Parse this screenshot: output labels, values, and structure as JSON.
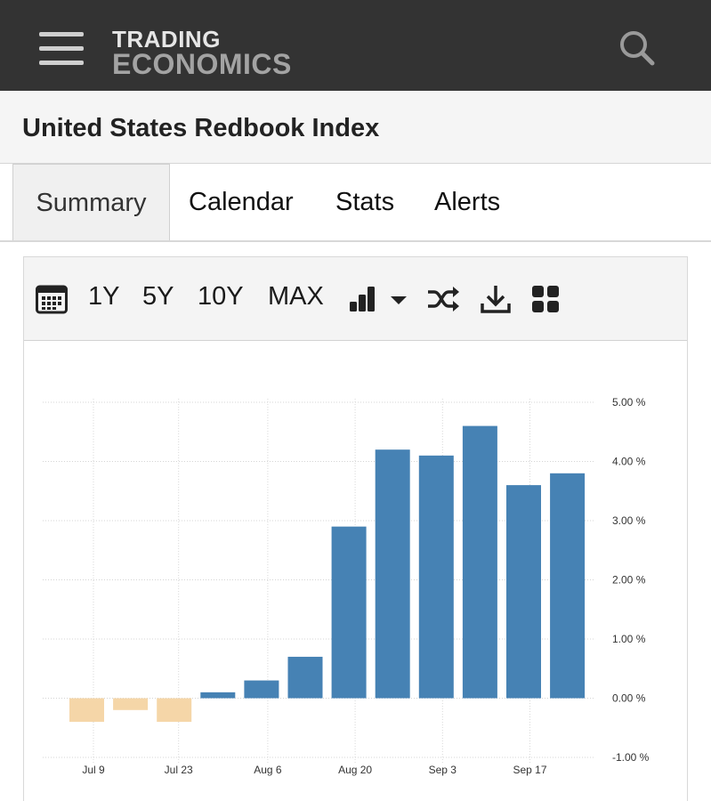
{
  "header": {
    "logo_line1": "TRADING",
    "logo_line2": "ECONOMICS",
    "menu_icon": "hamburger-menu-icon",
    "search_icon": "search-icon"
  },
  "page": {
    "title": "United States Redbook Index"
  },
  "tabs": [
    {
      "label": "Summary",
      "active": true
    },
    {
      "label": "Calendar",
      "active": false
    },
    {
      "label": "Stats",
      "active": false
    },
    {
      "label": "Alerts",
      "active": false
    }
  ],
  "toolbar": {
    "calendar_icon": "calendar-icon",
    "ranges": [
      "1Y",
      "5Y",
      "10Y",
      "MAX"
    ],
    "chart_type_icon": "bar-chart-icon",
    "dropdown_icon": "caret-down-icon",
    "compare_icon": "shuffle-icon",
    "download_icon": "download-icon",
    "embed_icon": "grid-icon"
  },
  "colors": {
    "positive": "#4682b4",
    "negative": "#f5d6a8",
    "header_bg": "#333333"
  },
  "chart_data": {
    "type": "bar",
    "title": "",
    "xlabel": "",
    "ylabel": "",
    "ylim": [
      -1,
      5
    ],
    "y_ticks": [
      "5.00 %",
      "4.00 %",
      "3.00 %",
      "2.00 %",
      "1.00 %",
      "0.00 %",
      "-1.00 %"
    ],
    "y_tick_values": [
      5,
      4,
      3,
      2,
      1,
      0,
      -1
    ],
    "x_tick_labels": [
      "Jul 9",
      "Jul 23",
      "Aug 6",
      "Aug 20",
      "Sep 3",
      "Sep 17"
    ],
    "x_tick_bar_index": [
      0,
      2,
      4,
      6,
      8,
      10
    ],
    "values": [
      -0.4,
      -0.2,
      -0.4,
      0.1,
      0.3,
      0.7,
      2.9,
      4.2,
      4.1,
      4.6,
      3.6,
      3.8
    ],
    "grid": true,
    "legend": "none"
  }
}
